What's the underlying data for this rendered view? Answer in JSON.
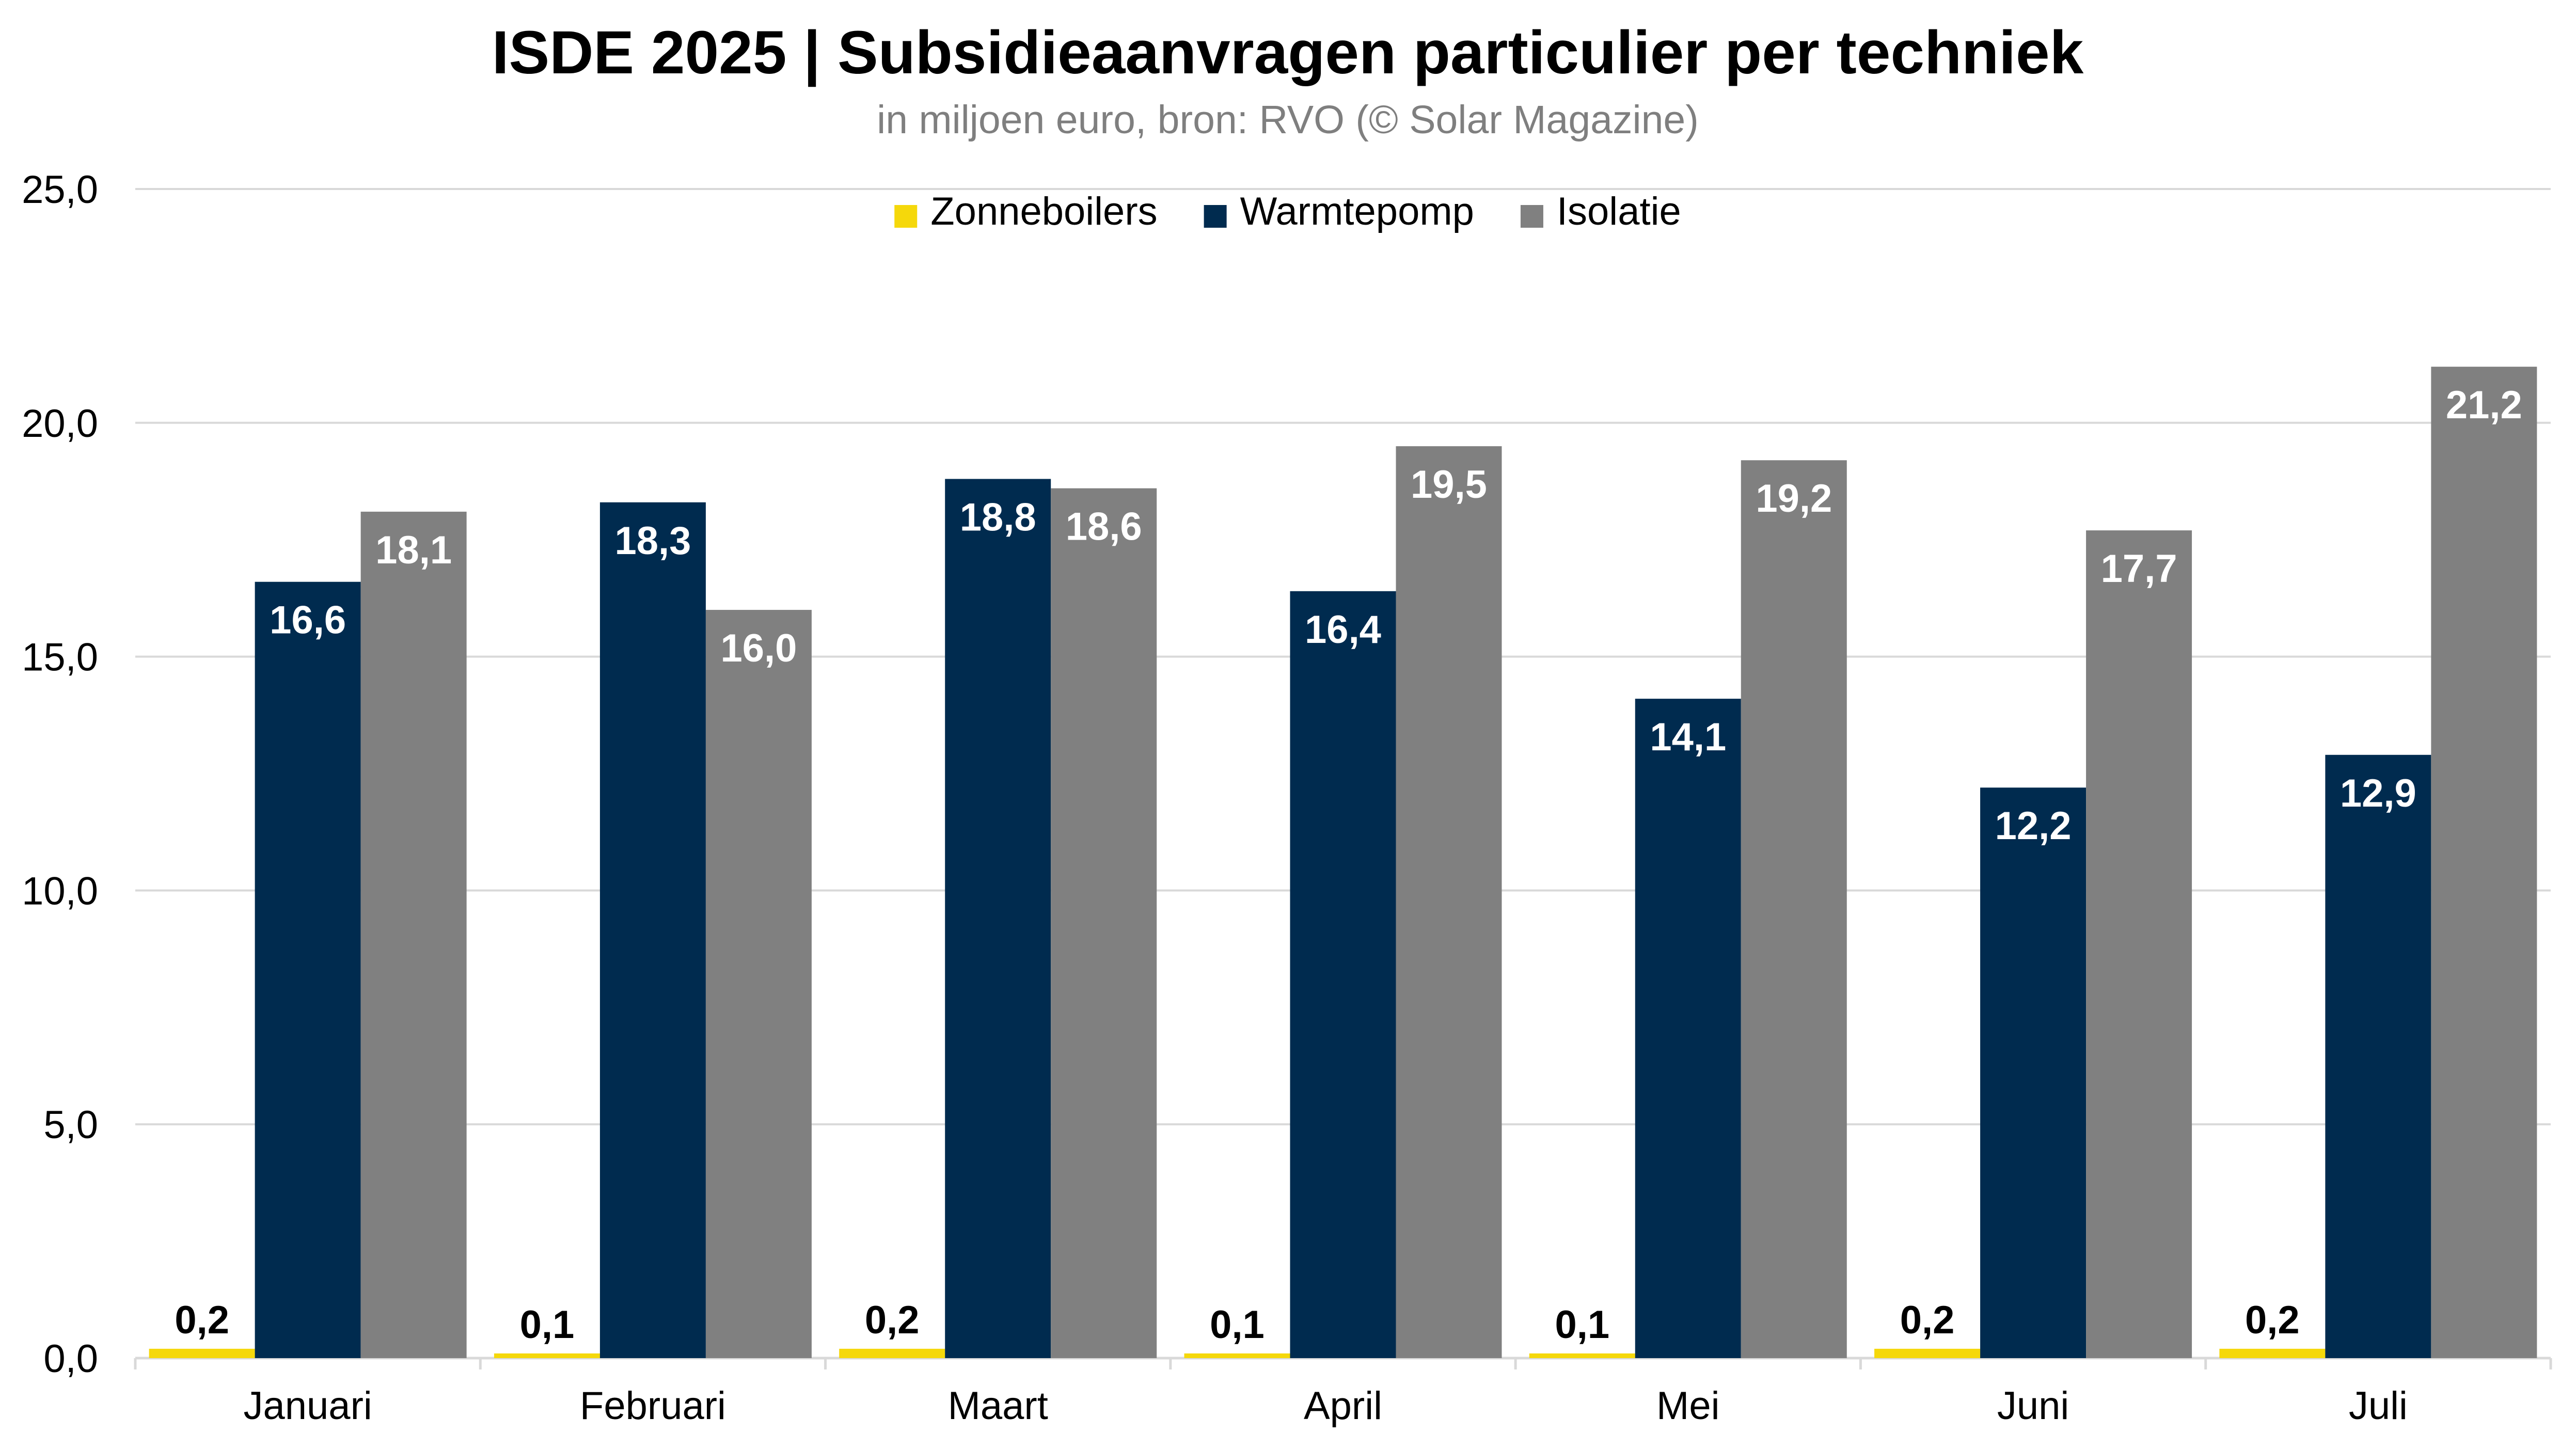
{
  "chart_data": {
    "type": "bar",
    "title": "ISDE 2025 | Subsidieaanvragen particulier per techniek",
    "subtitle": "in miljoen euro, bron: RVO (© Solar Magazine)",
    "categories": [
      "Januari",
      "Februari",
      "Maart",
      "April",
      "Mei",
      "Juni",
      "Juli"
    ],
    "series": [
      {
        "name": "Zonneboilers",
        "color": "#f5d80b",
        "values": [
          0.2,
          0.1,
          0.2,
          0.1,
          0.1,
          0.2,
          0.2
        ],
        "labels": [
          "0,2",
          "0,1",
          "0,2",
          "0,1",
          "0,1",
          "0,2",
          "0,2"
        ]
      },
      {
        "name": "Warmtepomp",
        "color": "#002b4f",
        "values": [
          16.6,
          18.3,
          18.8,
          16.4,
          14.1,
          12.2,
          12.9
        ],
        "labels": [
          "16,6",
          "18,3",
          "18,8",
          "16,4",
          "14,1",
          "12,2",
          "12,9"
        ]
      },
      {
        "name": "Isolatie",
        "color": "#808080",
        "values": [
          18.1,
          16.0,
          18.6,
          19.5,
          19.2,
          17.7,
          21.2
        ],
        "labels": [
          "18,1",
          "16,0",
          "18,6",
          "19,5",
          "19,2",
          "17,7",
          "21,2"
        ]
      }
    ],
    "ylim": [
      0,
      25
    ],
    "yticks": [
      0,
      5,
      10,
      15,
      20,
      25
    ],
    "ytick_labels": [
      "0,0",
      "5,0",
      "10,0",
      "15,0",
      "20,0",
      "25,0"
    ],
    "grid": true,
    "legend_position": "top-center"
  }
}
